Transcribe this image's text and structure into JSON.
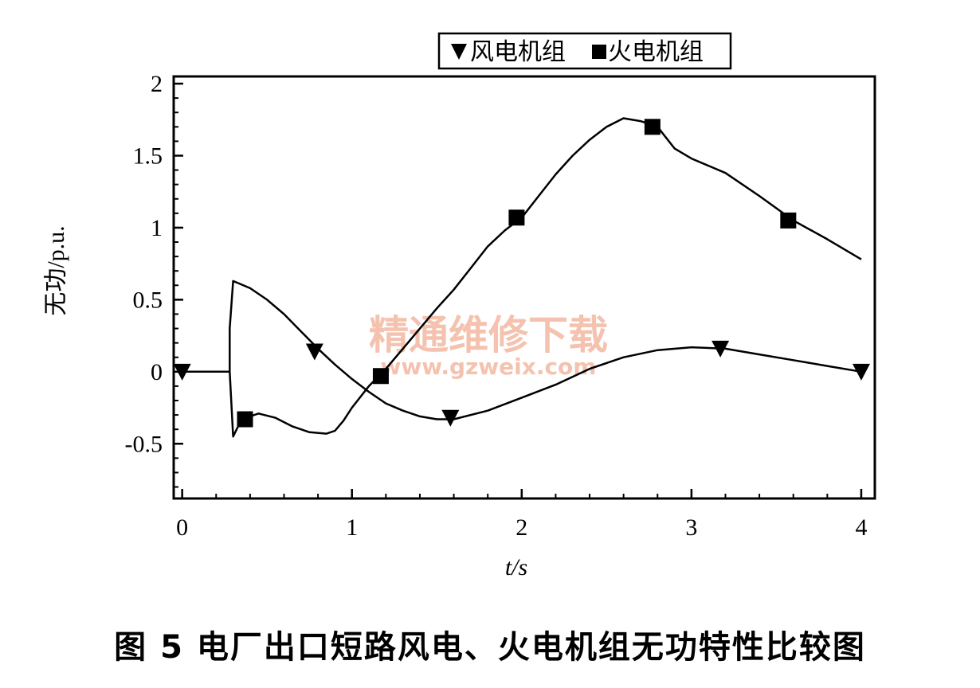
{
  "caption": "图 5   电厂出口短路风电、火电机组无功特性比较图",
  "watermark": {
    "text": "精通维修下载",
    "url": "www.gzweix.com"
  },
  "chart_data": {
    "type": "line",
    "xlabel": "t/s",
    "ylabel": "无功/p.u.",
    "xlim": [
      -0.05,
      4.08
    ],
    "ylim": [
      -0.88,
      2.05
    ],
    "xticks": [
      "0",
      "1",
      "2",
      "3",
      "4"
    ],
    "yticks": [
      "-0.5",
      "0",
      "0.5",
      "1",
      "1.5",
      "2"
    ],
    "ytick_values": [
      -0.5,
      0,
      0.5,
      1,
      1.5,
      2
    ],
    "xtick_values": [
      0,
      1,
      2,
      3,
      4
    ],
    "grid": false,
    "legend_position": "top-center",
    "series": [
      {
        "name": "风电机组",
        "marker": "triangle-down",
        "color": "#000000",
        "x": [
          0,
          0.2,
          0.28,
          0.28,
          0.3,
          0.4,
          0.5,
          0.6,
          0.7,
          0.8,
          0.9,
          1.0,
          1.1,
          1.2,
          1.3,
          1.4,
          1.5,
          1.6,
          1.8,
          2.0,
          2.2,
          2.4,
          2.6,
          2.8,
          3.0,
          3.2,
          3.4,
          3.6,
          3.8,
          4.0
        ],
        "y": [
          0,
          0,
          0,
          0.3,
          0.63,
          0.58,
          0.5,
          0.4,
          0.28,
          0.16,
          0.05,
          -0.05,
          -0.14,
          -0.22,
          -0.27,
          -0.31,
          -0.33,
          -0.33,
          -0.27,
          -0.18,
          -0.09,
          0.02,
          0.1,
          0.15,
          0.17,
          0.16,
          0.12,
          0.08,
          0.04,
          0.0
        ],
        "markers_x": [
          0,
          0.78,
          1.58,
          3.17,
          4.0
        ],
        "markers_y": [
          0,
          0.14,
          -0.32,
          0.16,
          0.0
        ]
      },
      {
        "name": "火电机组",
        "marker": "square",
        "color": "#000000",
        "x": [
          0,
          0.1,
          0.2,
          0.28,
          0.3,
          0.35,
          0.45,
          0.55,
          0.65,
          0.75,
          0.85,
          0.9,
          0.95,
          1.0,
          1.1,
          1.2,
          1.3,
          1.4,
          1.5,
          1.6,
          1.7,
          1.8,
          1.9,
          2.0,
          2.1,
          2.2,
          2.3,
          2.4,
          2.5,
          2.6,
          2.7,
          2.8,
          2.9,
          3.0,
          3.2,
          3.4,
          3.6,
          3.8,
          4.0
        ],
        "y": [
          0,
          0,
          0,
          0,
          -0.45,
          -0.33,
          -0.29,
          -0.32,
          -0.38,
          -0.42,
          -0.43,
          -0.41,
          -0.34,
          -0.25,
          -0.1,
          0.02,
          0.16,
          0.3,
          0.44,
          0.57,
          0.72,
          0.87,
          0.98,
          1.07,
          1.22,
          1.37,
          1.5,
          1.61,
          1.7,
          1.76,
          1.74,
          1.7,
          1.55,
          1.48,
          1.38,
          1.22,
          1.05,
          0.92,
          0.78
        ],
        "markers_x": [
          0.37,
          1.17,
          1.97,
          2.77,
          3.57
        ],
        "markers_y": [
          -0.33,
          -0.03,
          1.07,
          1.7,
          1.05
        ]
      }
    ]
  }
}
